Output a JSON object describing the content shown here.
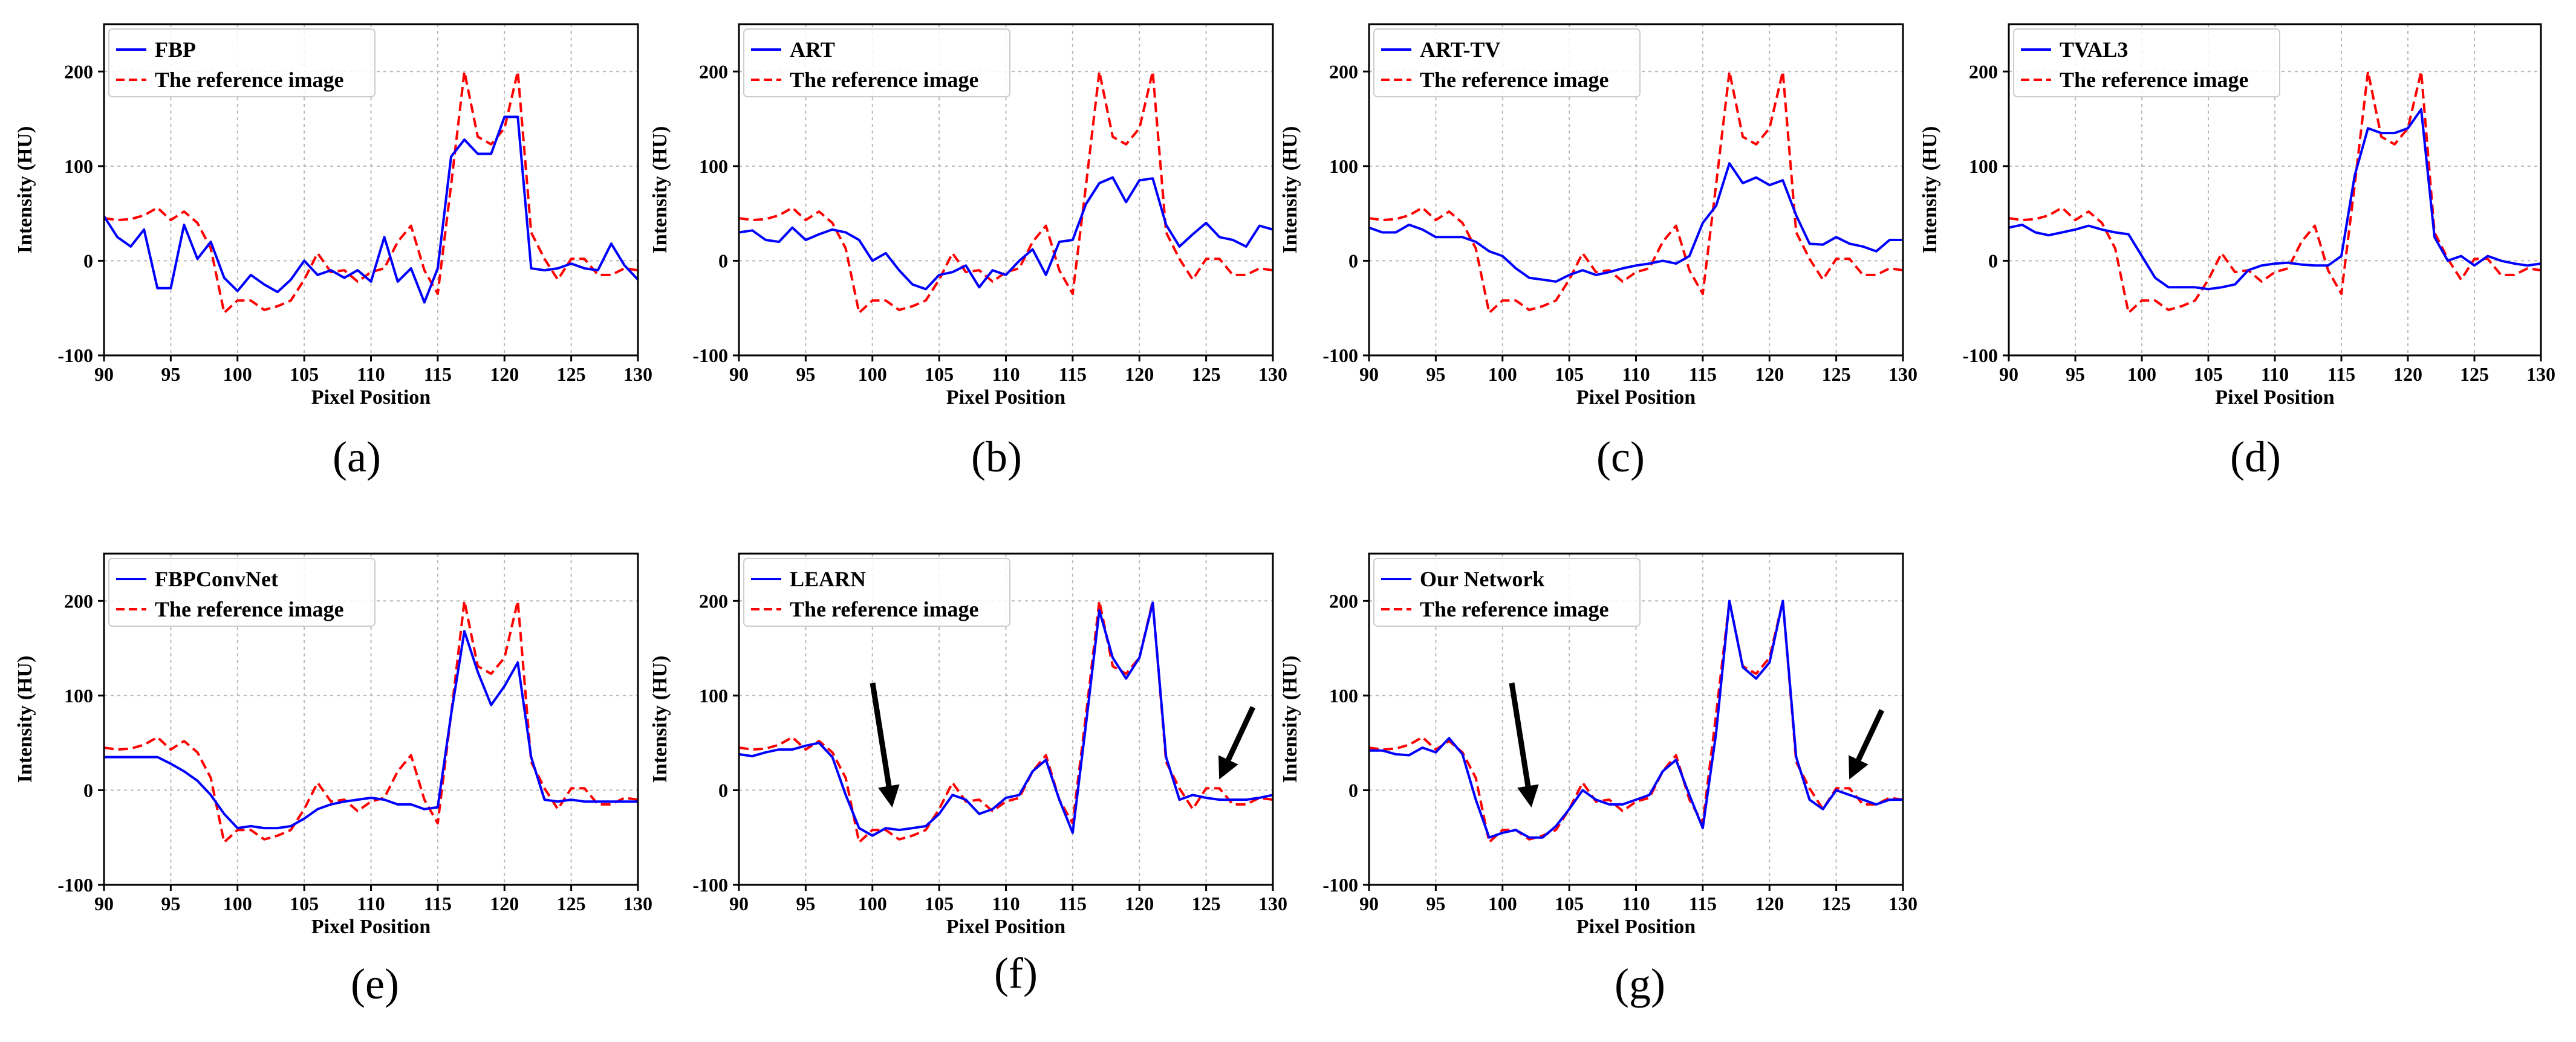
{
  "chart_data": [
    {
      "type": "line",
      "caption": "(a)",
      "title": "",
      "xlabel": "Pixel Position",
      "ylabel": "Intensity (HU)",
      "xlim": [
        90,
        130
      ],
      "ylim": [
        -100,
        250
      ],
      "xticks": [
        "90",
        "95",
        "100",
        "105",
        "110",
        "115",
        "120",
        "125",
        "130"
      ],
      "yticks": [
        "-100",
        "0",
        "100",
        "200"
      ],
      "grid": true,
      "legend_position": "top-left",
      "x": [
        90,
        91,
        92,
        93,
        94,
        95,
        96,
        97,
        98,
        99,
        100,
        101,
        102,
        103,
        104,
        105,
        106,
        107,
        108,
        109,
        110,
        111,
        112,
        113,
        114,
        115,
        116,
        117,
        118,
        119,
        120,
        121,
        122,
        123,
        124,
        125,
        126,
        127,
        128,
        129,
        130
      ],
      "series": [
        {
          "name": "FBP",
          "color": "#0000ff",
          "dash": "solid",
          "values": [
            47,
            25,
            15,
            33,
            -29,
            -29,
            38,
            2,
            20,
            -18,
            -32,
            -15,
            -25,
            -33,
            -20,
            0,
            -15,
            -10,
            -18,
            -10,
            -22,
            25,
            -22,
            -8,
            -44,
            -8,
            110,
            128,
            113,
            113,
            152,
            152,
            -8,
            -10,
            -8,
            -3,
            -8,
            -10,
            18,
            -5,
            -20
          ]
        },
        {
          "name": "The reference image",
          "color": "#ff0000",
          "dash": "dashed",
          "values": [
            45,
            43,
            44,
            48,
            56,
            43,
            52,
            40,
            13,
            -55,
            -42,
            -42,
            -52,
            -48,
            -42,
            -20,
            8,
            -12,
            -10,
            -22,
            -12,
            -8,
            20,
            37,
            -10,
            -35,
            80,
            200,
            131,
            123,
            140,
            200,
            30,
            2,
            -20,
            2,
            2,
            -15,
            -15,
            -8,
            -10
          ]
        }
      ]
    },
    {
      "type": "line",
      "caption": "(b)",
      "title": "",
      "xlabel": "Pixel Position",
      "ylabel": "Intensity (HU)",
      "xlim": [
        90,
        130
      ],
      "ylim": [
        -100,
        250
      ],
      "xticks": [
        "90",
        "95",
        "100",
        "105",
        "110",
        "115",
        "120",
        "125",
        "130"
      ],
      "yticks": [
        "-100",
        "0",
        "100",
        "200"
      ],
      "grid": true,
      "legend_position": "top-left",
      "x": [
        90,
        91,
        92,
        93,
        94,
        95,
        96,
        97,
        98,
        99,
        100,
        101,
        102,
        103,
        104,
        105,
        106,
        107,
        108,
        109,
        110,
        111,
        112,
        113,
        114,
        115,
        116,
        117,
        118,
        119,
        120,
        121,
        122,
        123,
        124,
        125,
        126,
        127,
        128,
        129,
        130
      ],
      "series": [
        {
          "name": "ART",
          "color": "#0000ff",
          "dash": "solid",
          "values": [
            30,
            32,
            22,
            20,
            35,
            22,
            28,
            33,
            30,
            22,
            0,
            8,
            -10,
            -25,
            -30,
            -15,
            -12,
            -5,
            -28,
            -10,
            -15,
            0,
            12,
            -15,
            20,
            22,
            60,
            82,
            88,
            62,
            85,
            87,
            38,
            15,
            28,
            40,
            25,
            22,
            15,
            37,
            33
          ]
        },
        {
          "name": "The reference image",
          "color": "#ff0000",
          "dash": "dashed",
          "values": [
            45,
            43,
            44,
            48,
            56,
            43,
            52,
            40,
            13,
            -55,
            -42,
            -42,
            -52,
            -48,
            -42,
            -20,
            8,
            -12,
            -10,
            -22,
            -12,
            -8,
            20,
            37,
            -10,
            -35,
            80,
            200,
            131,
            123,
            140,
            200,
            30,
            2,
            -20,
            2,
            2,
            -15,
            -15,
            -8,
            -10
          ]
        }
      ]
    },
    {
      "type": "line",
      "caption": "(c)",
      "title": "",
      "xlabel": "Pixel Position",
      "ylabel": "Intensity (HU)",
      "xlim": [
        90,
        130
      ],
      "ylim": [
        -100,
        250
      ],
      "xticks": [
        "90",
        "95",
        "100",
        "105",
        "110",
        "115",
        "120",
        "125",
        "130"
      ],
      "yticks": [
        "-100",
        "0",
        "100",
        "200"
      ],
      "grid": true,
      "legend_position": "top-left",
      "x": [
        90,
        91,
        92,
        93,
        94,
        95,
        96,
        97,
        98,
        99,
        100,
        101,
        102,
        103,
        104,
        105,
        106,
        107,
        108,
        109,
        110,
        111,
        112,
        113,
        114,
        115,
        116,
        117,
        118,
        119,
        120,
        121,
        122,
        123,
        124,
        125,
        126,
        127,
        128,
        129,
        130
      ],
      "series": [
        {
          "name": "ART-TV",
          "color": "#0000ff",
          "dash": "solid",
          "values": [
            35,
            30,
            30,
            38,
            33,
            25,
            25,
            25,
            20,
            10,
            5,
            -8,
            -18,
            -20,
            -22,
            -15,
            -10,
            -15,
            -12,
            -8,
            -5,
            -3,
            0,
            -3,
            5,
            40,
            58,
            103,
            82,
            88,
            80,
            85,
            48,
            18,
            17,
            25,
            18,
            15,
            10,
            22,
            22
          ]
        },
        {
          "name": "The reference image",
          "color": "#ff0000",
          "dash": "dashed",
          "values": [
            45,
            43,
            44,
            48,
            56,
            43,
            52,
            40,
            13,
            -55,
            -42,
            -42,
            -52,
            -48,
            -42,
            -20,
            8,
            -12,
            -10,
            -22,
            -12,
            -8,
            20,
            37,
            -10,
            -35,
            80,
            200,
            131,
            123,
            140,
            200,
            30,
            2,
            -20,
            2,
            2,
            -15,
            -15,
            -8,
            -10
          ]
        }
      ]
    },
    {
      "type": "line",
      "caption": "(d)",
      "title": "",
      "xlabel": "Pixel Position",
      "ylabel": "Intensity (HU)",
      "xlim": [
        90,
        130
      ],
      "ylim": [
        -100,
        250
      ],
      "xticks": [
        "90",
        "95",
        "100",
        "105",
        "110",
        "115",
        "120",
        "125",
        "130"
      ],
      "yticks": [
        "-100",
        "0",
        "100",
        "200"
      ],
      "grid": true,
      "legend_position": "top-left",
      "x": [
        90,
        91,
        92,
        93,
        94,
        95,
        96,
        97,
        98,
        99,
        100,
        101,
        102,
        103,
        104,
        105,
        106,
        107,
        108,
        109,
        110,
        111,
        112,
        113,
        114,
        115,
        116,
        117,
        118,
        119,
        120,
        121,
        122,
        123,
        124,
        125,
        126,
        127,
        128,
        129,
        130
      ],
      "series": [
        {
          "name": "TVAL3",
          "color": "#0000ff",
          "dash": "solid",
          "values": [
            35,
            38,
            30,
            27,
            30,
            33,
            37,
            33,
            30,
            28,
            5,
            -18,
            -28,
            -28,
            -28,
            -30,
            -28,
            -25,
            -10,
            -5,
            -3,
            -2,
            -4,
            -5,
            -5,
            5,
            90,
            140,
            135,
            135,
            140,
            160,
            25,
            0,
            5,
            -5,
            5,
            0,
            -3,
            -5,
            -3
          ]
        },
        {
          "name": "The reference image",
          "color": "#ff0000",
          "dash": "dashed",
          "values": [
            45,
            43,
            44,
            48,
            56,
            43,
            52,
            40,
            13,
            -55,
            -42,
            -42,
            -52,
            -48,
            -42,
            -20,
            8,
            -12,
            -10,
            -22,
            -12,
            -8,
            20,
            37,
            -10,
            -35,
            80,
            200,
            131,
            123,
            140,
            200,
            30,
            2,
            -20,
            2,
            2,
            -15,
            -15,
            -8,
            -10
          ]
        }
      ]
    },
    {
      "type": "line",
      "caption": "(e)",
      "title": "",
      "xlabel": "Pixel Position",
      "ylabel": "Intensity (HU)",
      "xlim": [
        90,
        130
      ],
      "ylim": [
        -100,
        250
      ],
      "xticks": [
        "90",
        "95",
        "100",
        "105",
        "110",
        "115",
        "120",
        "125",
        "130"
      ],
      "yticks": [
        "-100",
        "0",
        "100",
        "200"
      ],
      "grid": true,
      "legend_position": "top-left",
      "x": [
        90,
        91,
        92,
        93,
        94,
        95,
        96,
        97,
        98,
        99,
        100,
        101,
        102,
        103,
        104,
        105,
        106,
        107,
        108,
        109,
        110,
        111,
        112,
        113,
        114,
        115,
        116,
        117,
        118,
        119,
        120,
        121,
        122,
        123,
        124,
        125,
        126,
        127,
        128,
        129,
        130
      ],
      "series": [
        {
          "name": "FBPConvNet",
          "color": "#0000ff",
          "dash": "solid",
          "values": [
            35,
            35,
            35,
            35,
            35,
            28,
            20,
            10,
            -5,
            -25,
            -40,
            -38,
            -40,
            -40,
            -38,
            -30,
            -20,
            -15,
            -12,
            -10,
            -8,
            -10,
            -15,
            -15,
            -20,
            -18,
            80,
            168,
            125,
            90,
            110,
            135,
            35,
            -10,
            -12,
            -10,
            -12,
            -12,
            -12,
            -12,
            -12
          ]
        },
        {
          "name": "The reference image",
          "color": "#ff0000",
          "dash": "dashed",
          "values": [
            45,
            43,
            44,
            48,
            56,
            43,
            52,
            40,
            13,
            -55,
            -42,
            -42,
            -52,
            -48,
            -42,
            -20,
            8,
            -12,
            -10,
            -22,
            -12,
            -8,
            20,
            37,
            -10,
            -35,
            80,
            200,
            131,
            123,
            140,
            200,
            30,
            2,
            -20,
            2,
            2,
            -15,
            -15,
            -8,
            -10
          ]
        }
      ]
    },
    {
      "type": "line",
      "caption": "(f)",
      "title": "",
      "xlabel": "Pixel Position",
      "ylabel": "Intensity (HU)",
      "xlim": [
        90,
        130
      ],
      "ylim": [
        -100,
        250
      ],
      "xticks": [
        "90",
        "95",
        "100",
        "105",
        "110",
        "115",
        "120",
        "125",
        "130"
      ],
      "yticks": [
        "-100",
        "0",
        "100",
        "200"
      ],
      "grid": true,
      "legend_position": "top-left",
      "x": [
        90,
        91,
        92,
        93,
        94,
        95,
        96,
        97,
        98,
        99,
        100,
        101,
        102,
        103,
        104,
        105,
        106,
        107,
        108,
        109,
        110,
        111,
        112,
        113,
        114,
        115,
        116,
        117,
        118,
        119,
        120,
        121,
        122,
        123,
        124,
        125,
        126,
        127,
        128,
        129,
        130
      ],
      "series": [
        {
          "name": "LEARN",
          "color": "#0000ff",
          "dash": "solid",
          "values": [
            38,
            36,
            40,
            43,
            43,
            47,
            50,
            35,
            -5,
            -40,
            -48,
            -40,
            -42,
            -40,
            -38,
            -25,
            -5,
            -10,
            -25,
            -20,
            -8,
            -5,
            20,
            32,
            -10,
            -45,
            70,
            190,
            140,
            118,
            140,
            198,
            35,
            -10,
            -5,
            -8,
            -10,
            -10,
            -10,
            -8,
            -5
          ]
        },
        {
          "name": "The reference image",
          "color": "#ff0000",
          "dash": "dashed",
          "values": [
            45,
            43,
            44,
            48,
            56,
            43,
            52,
            40,
            13,
            -55,
            -42,
            -42,
            -52,
            -48,
            -42,
            -20,
            8,
            -12,
            -10,
            -22,
            -12,
            -8,
            20,
            37,
            -10,
            -35,
            80,
            200,
            131,
            123,
            140,
            200,
            30,
            2,
            -20,
            2,
            2,
            -15,
            -15,
            -8,
            -10
          ]
        }
      ]
    },
    {
      "type": "line",
      "caption": "(g)",
      "title": "",
      "xlabel": "Pixel Position",
      "ylabel": "Intensity (HU)",
      "xlim": [
        90,
        130
      ],
      "ylim": [
        -100,
        250
      ],
      "xticks": [
        "90",
        "95",
        "100",
        "105",
        "110",
        "115",
        "120",
        "125",
        "130"
      ],
      "yticks": [
        "-100",
        "0",
        "100",
        "200"
      ],
      "grid": true,
      "legend_position": "top-left",
      "x": [
        90,
        91,
        92,
        93,
        94,
        95,
        96,
        97,
        98,
        99,
        100,
        101,
        102,
        103,
        104,
        105,
        106,
        107,
        108,
        109,
        110,
        111,
        112,
        113,
        114,
        115,
        116,
        117,
        118,
        119,
        120,
        121,
        122,
        123,
        124,
        125,
        126,
        127,
        128,
        129,
        130
      ],
      "series": [
        {
          "name": "Our Network",
          "color": "#0000ff",
          "dash": "solid",
          "values": [
            42,
            42,
            38,
            37,
            45,
            40,
            55,
            38,
            -10,
            -50,
            -45,
            -42,
            -50,
            -50,
            -38,
            -20,
            0,
            -10,
            -15,
            -15,
            -10,
            -5,
            20,
            32,
            -5,
            -40,
            60,
            200,
            130,
            118,
            135,
            200,
            35,
            -10,
            -20,
            0,
            -5,
            -10,
            -15,
            -10,
            -10
          ]
        },
        {
          "name": "The reference image",
          "color": "#ff0000",
          "dash": "dashed",
          "values": [
            45,
            43,
            44,
            48,
            56,
            43,
            52,
            40,
            13,
            -55,
            -42,
            -42,
            -52,
            -48,
            -42,
            -20,
            8,
            -12,
            -10,
            -22,
            -12,
            -8,
            20,
            37,
            -10,
            -35,
            80,
            200,
            131,
            123,
            140,
            200,
            30,
            2,
            -20,
            2,
            2,
            -15,
            -15,
            -8,
            -10
          ]
        }
      ]
    }
  ]
}
